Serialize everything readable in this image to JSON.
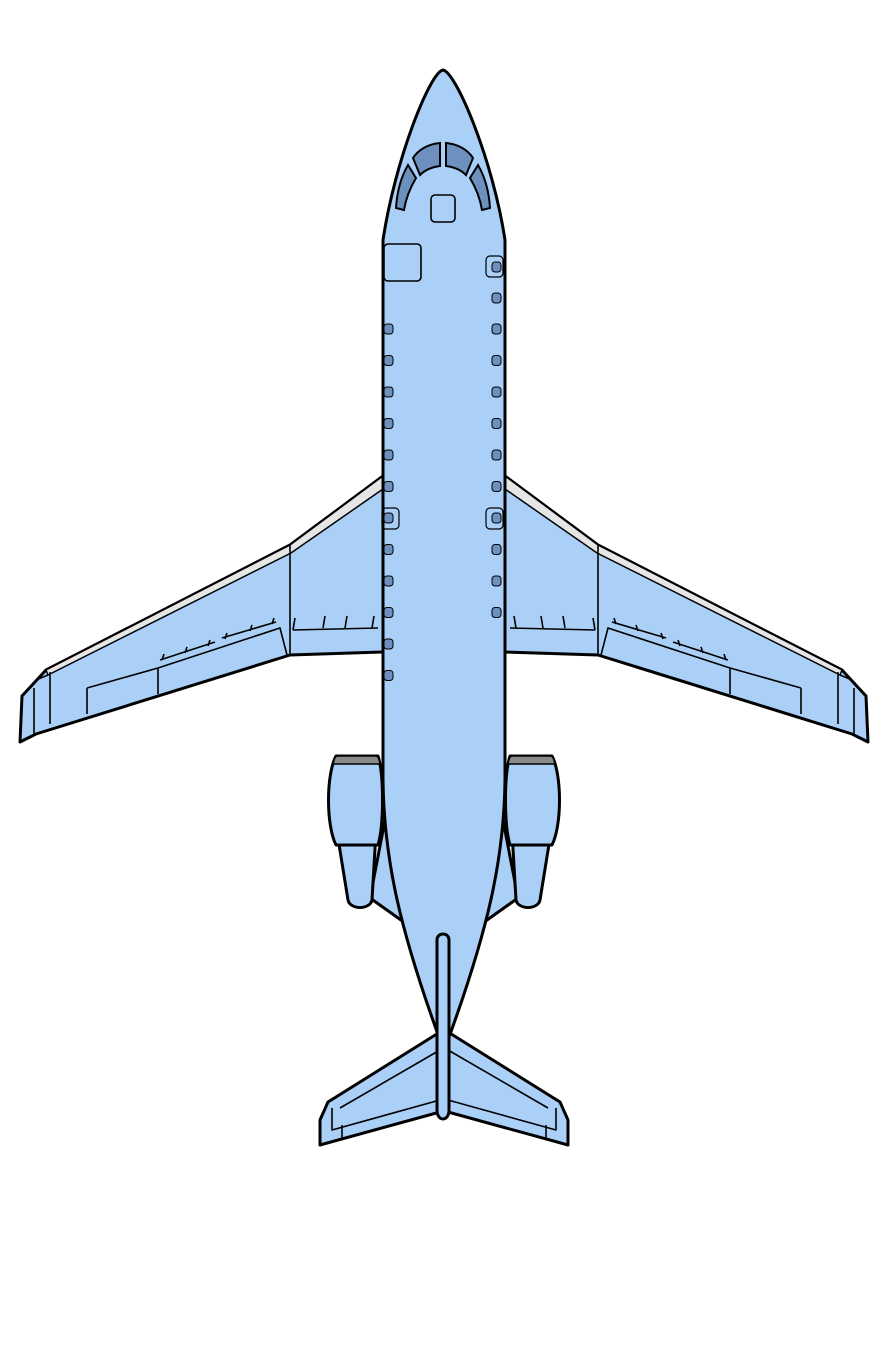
{
  "colors": {
    "background": "#ffffff",
    "body": "#aad0f8",
    "outline": "#000000",
    "window": "#6e90bf",
    "leading_edge": "#e6e6e6",
    "engine_intake": "#8a8a8a"
  },
  "aircraft": {
    "view": "top-down",
    "icon": "airplane-icon",
    "engines": 2,
    "cabin_windows_per_side": 12
  }
}
